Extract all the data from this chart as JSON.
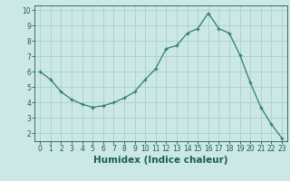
{
  "x": [
    0,
    1,
    2,
    3,
    4,
    5,
    6,
    7,
    8,
    9,
    10,
    11,
    12,
    13,
    14,
    15,
    16,
    17,
    18,
    19,
    20,
    21,
    22,
    23
  ],
  "y": [
    6.0,
    5.5,
    4.7,
    4.2,
    3.9,
    3.7,
    3.8,
    4.0,
    4.3,
    4.7,
    5.5,
    6.2,
    7.5,
    7.7,
    8.5,
    8.8,
    9.8,
    8.8,
    8.5,
    7.1,
    5.3,
    3.7,
    2.6,
    1.7
  ],
  "line_color": "#2e7d6e",
  "marker": "+",
  "marker_size": 3,
  "bg_color": "#cce8e4",
  "grid_color": "#aacfcb",
  "xlabel": "Humidex (Indice chaleur)",
  "xlim": [
    -0.5,
    23.5
  ],
  "ylim": [
    1.5,
    10.3
  ],
  "yticks": [
    2,
    3,
    4,
    5,
    6,
    7,
    8,
    9,
    10
  ],
  "xticks": [
    0,
    1,
    2,
    3,
    4,
    5,
    6,
    7,
    8,
    9,
    10,
    11,
    12,
    13,
    14,
    15,
    16,
    17,
    18,
    19,
    20,
    21,
    22,
    23
  ],
  "tick_label_fontsize": 5.5,
  "xlabel_fontsize": 7.5,
  "line_color2": "#2e7d6e",
  "tick_color": "#1a5c54"
}
